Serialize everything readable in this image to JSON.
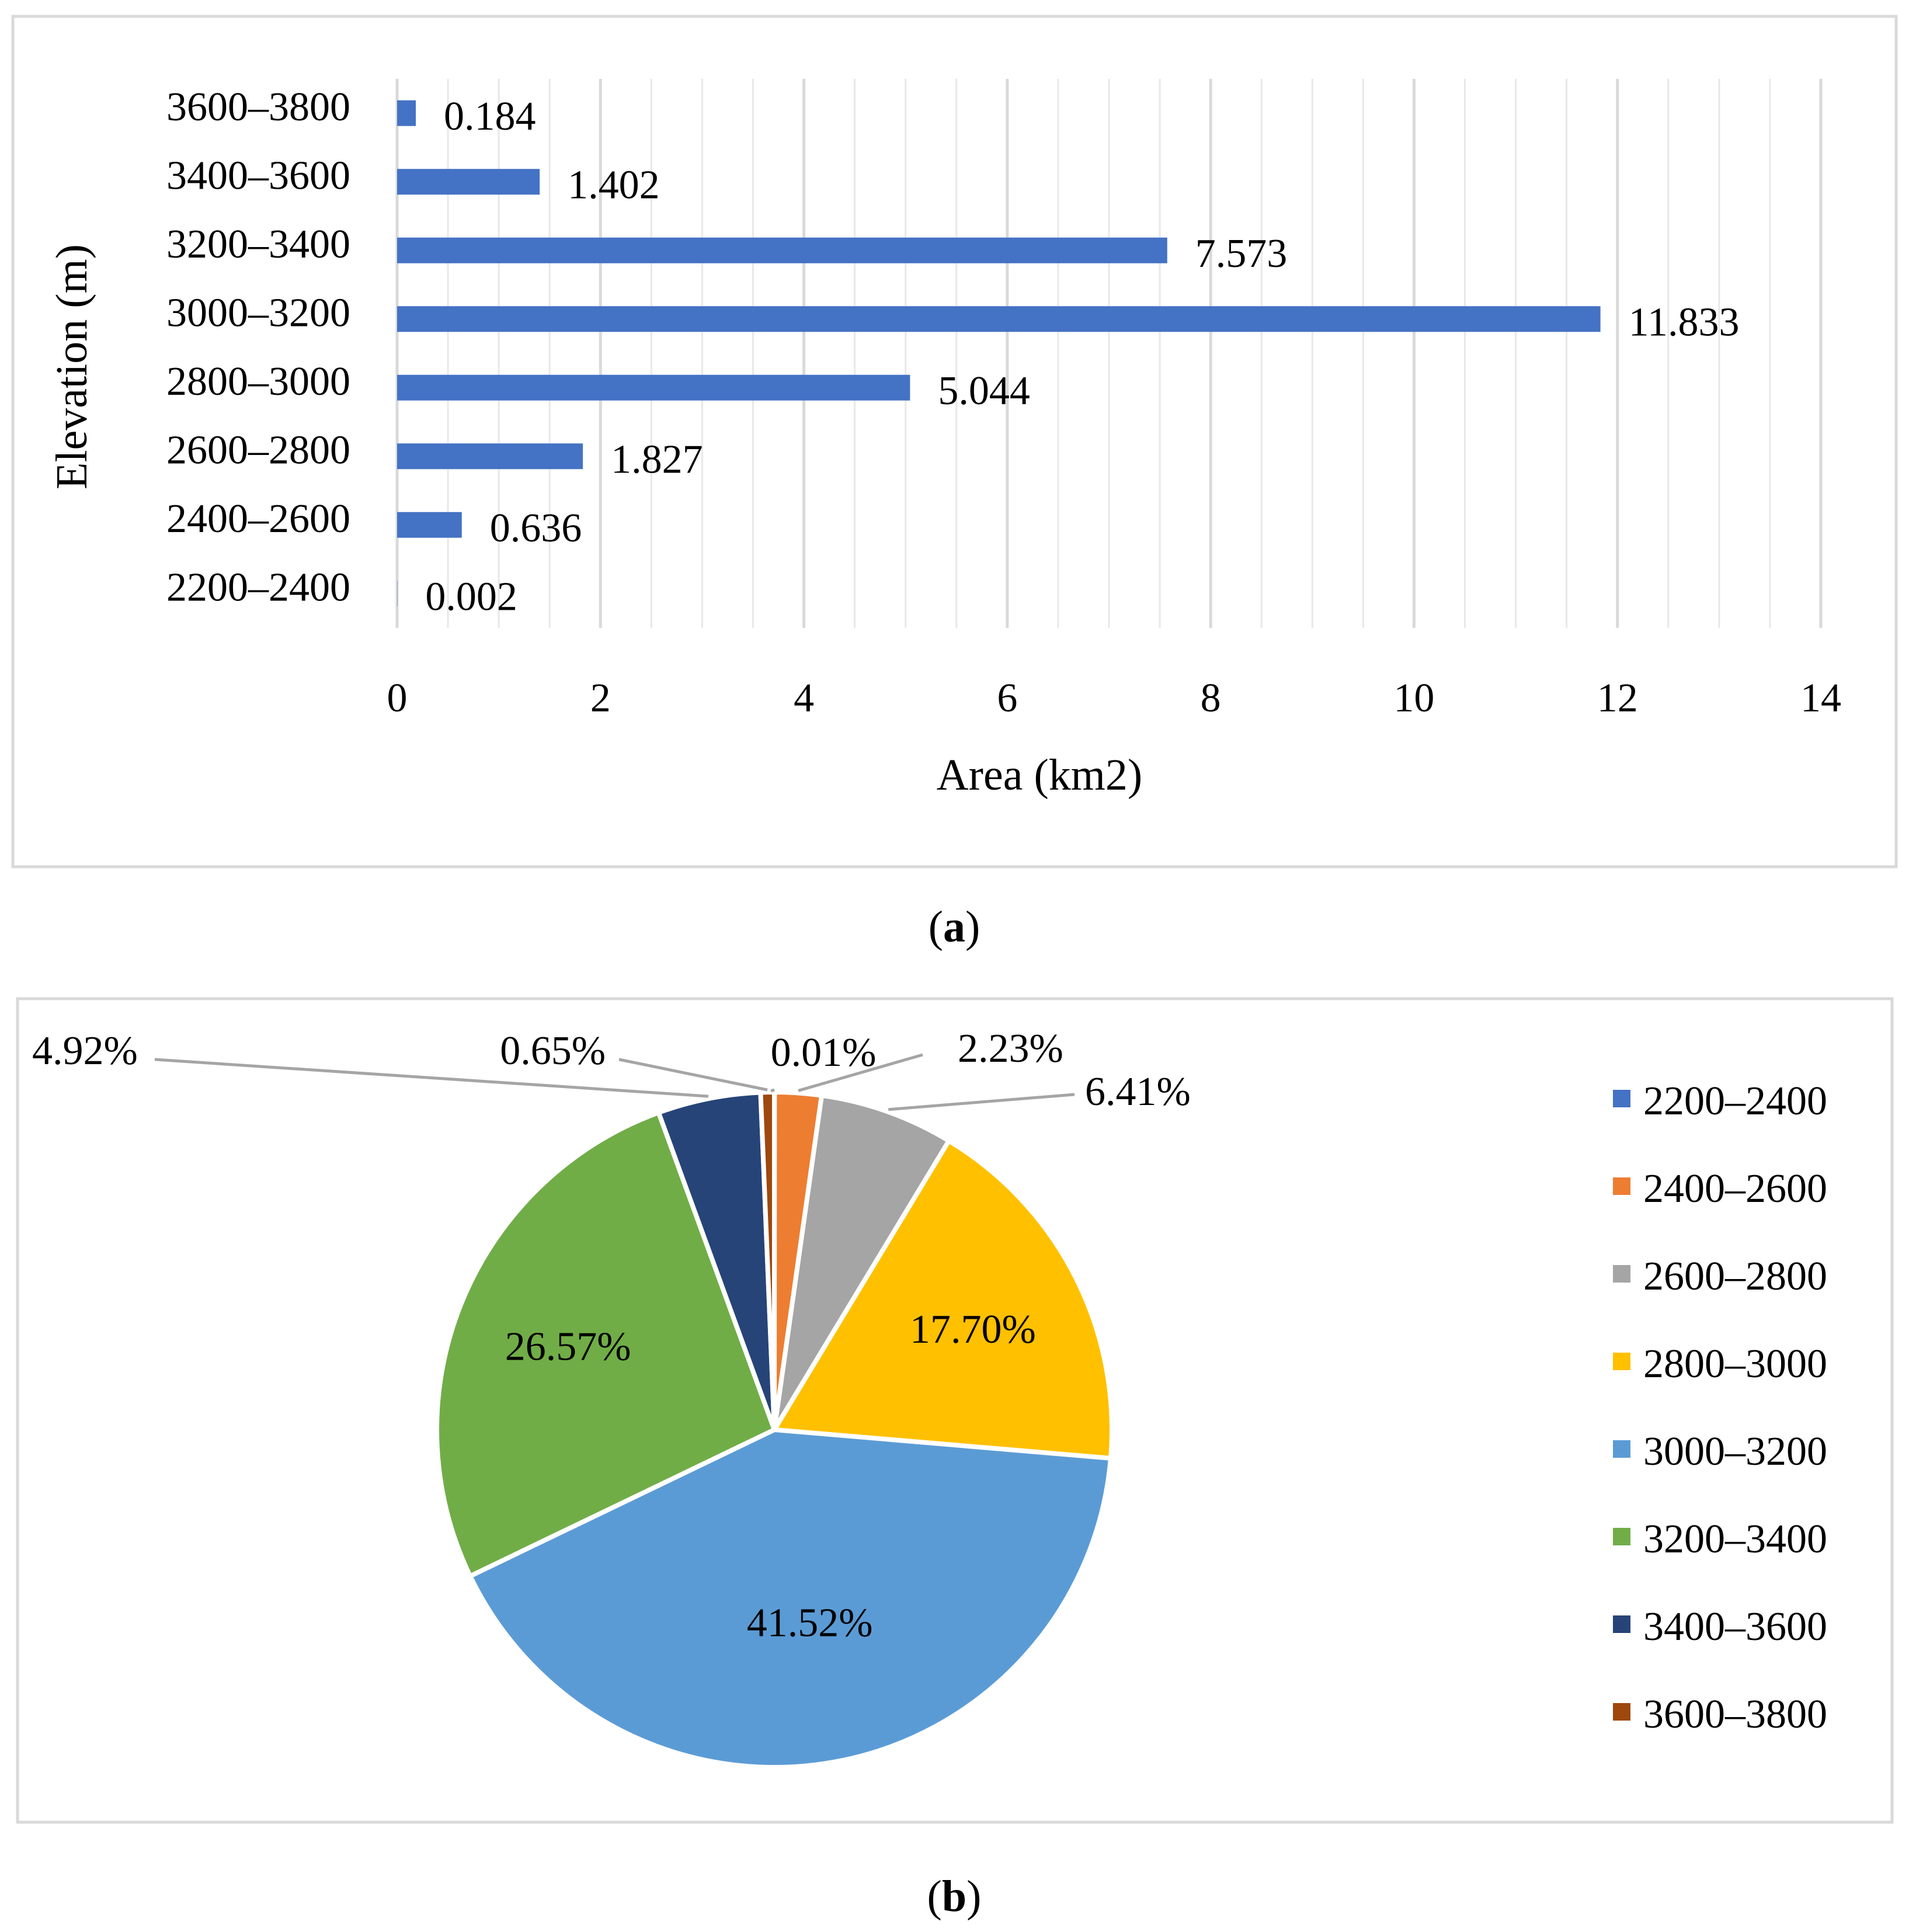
{
  "chart_data": [
    {
      "type": "bar",
      "orientation": "horizontal",
      "categories": [
        "2200–2400",
        "2400–2600",
        "2600–2800",
        "2800–3000",
        "3000–3200",
        "3200–3400",
        "3400–3600",
        "3600–3800"
      ],
      "values": [
        0.002,
        0.636,
        1.827,
        5.044,
        11.833,
        7.573,
        1.402,
        0.184
      ],
      "data_labels": [
        "0.002",
        "0.636",
        "1.827",
        "5.044",
        "11.833",
        "7.573",
        "1.402",
        "0.184"
      ],
      "xlabel": "Area (km2)",
      "ylabel": "Elevation (m)",
      "xlim": [
        0,
        14
      ],
      "xticks": [
        0,
        2,
        4,
        6,
        8,
        10,
        12,
        14
      ],
      "xtick_labels": [
        "0",
        "2",
        "4",
        "6",
        "8",
        "10",
        "12",
        "14"
      ],
      "minor_tick_step": 0.5,
      "grid": true,
      "bar_color": "#4472C4",
      "caption": "(a)",
      "caption_letter": "a"
    },
    {
      "type": "pie",
      "categories": [
        "2200–2400",
        "2400–2600",
        "2600–2800",
        "2800–3000",
        "3000–3200",
        "3200–3400",
        "3400–3600",
        "3600–3800"
      ],
      "values": [
        0.01,
        2.23,
        6.41,
        17.7,
        41.52,
        26.57,
        4.92,
        0.65
      ],
      "data_labels": [
        "0.01%",
        "2.23%",
        "6.41%",
        "17.70%",
        "41.52%",
        "26.57%",
        "4.92%",
        "0.65%"
      ],
      "colors": [
        "#4472C4",
        "#ED7D31",
        "#A5A5A5",
        "#FFC000",
        "#5B9BD5",
        "#70AD47",
        "#264478",
        "#9E480E"
      ],
      "legend_position": "right",
      "caption": "(b)",
      "caption_letter": "b"
    }
  ]
}
